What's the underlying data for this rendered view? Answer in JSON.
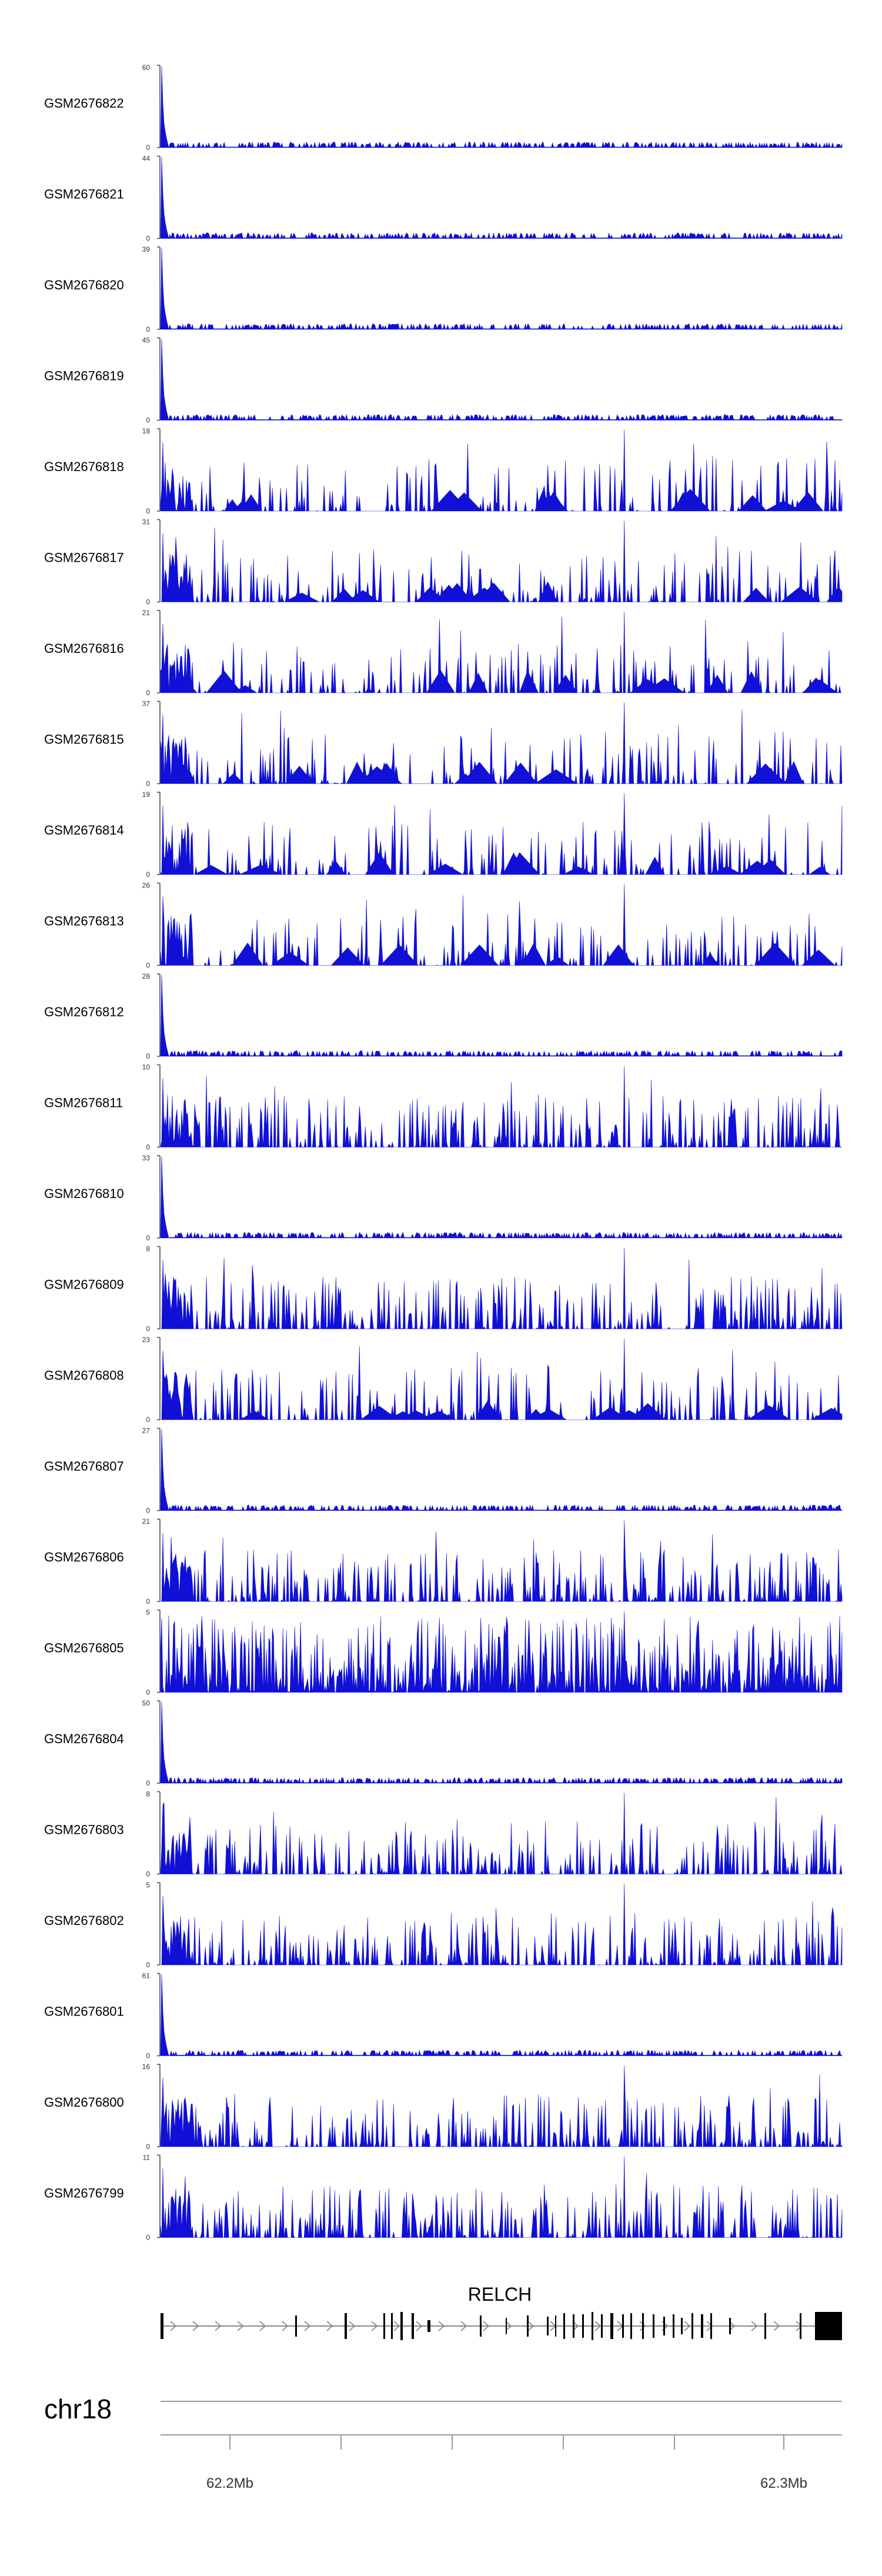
{
  "chart_data": {
    "type": "area",
    "chromosome": "chr18",
    "gene": {
      "name": "RELCH",
      "strand": "+"
    },
    "x_ticks": [
      "62.2Mb",
      "62.3Mb"
    ],
    "colors": {
      "track": "#1010d6",
      "axis": "#444444",
      "gene": "#000000",
      "ideogram": "#9a9a9a"
    },
    "tracks": [
      {
        "name": "GSM2676822",
        "ymax": "60",
        "ymin": "0",
        "pattern": "spike_first",
        "peak": 60
      },
      {
        "name": "GSM2676821",
        "ymax": "44",
        "ymin": "0",
        "pattern": "spike_first",
        "peak": 44
      },
      {
        "name": "GSM2676820",
        "ymax": "39",
        "ymin": "0",
        "pattern": "spike_first",
        "peak": 39
      },
      {
        "name": "GSM2676819",
        "ymax": "45",
        "ymin": "0",
        "pattern": "spike_first",
        "peak": 45
      },
      {
        "name": "GSM2676818",
        "ymax": "18",
        "ymin": "0",
        "pattern": "sparse_peaks",
        "peak": 18
      },
      {
        "name": "GSM2676817",
        "ymax": "31",
        "ymin": "0",
        "pattern": "sparse_peaks",
        "peak": 31
      },
      {
        "name": "GSM2676816",
        "ymax": "21",
        "ymin": "0",
        "pattern": "sparse_peaks",
        "peak": 21
      },
      {
        "name": "GSM2676815",
        "ymax": "37",
        "ymin": "0",
        "pattern": "sparse_peaks",
        "peak": 37
      },
      {
        "name": "GSM2676814",
        "ymax": "19",
        "ymin": "0",
        "pattern": "sparse_peaks",
        "peak": 19
      },
      {
        "name": "GSM2676813",
        "ymax": "26",
        "ymin": "0",
        "pattern": "sparse_peaks",
        "peak": 26
      },
      {
        "name": "GSM2676812",
        "ymax": "28",
        "ymin": "0",
        "pattern": "spike_first",
        "peak": 28
      },
      {
        "name": "GSM2676811",
        "ymax": "10",
        "ymin": "0",
        "pattern": "dense_peaks",
        "peak": 10
      },
      {
        "name": "GSM2676810",
        "ymax": "33",
        "ymin": "0",
        "pattern": "spike_first",
        "peak": 33
      },
      {
        "name": "GSM2676809",
        "ymax": "8",
        "ymin": "0",
        "pattern": "dense_peaks",
        "peak": 8
      },
      {
        "name": "GSM2676808",
        "ymax": "23",
        "ymin": "0",
        "pattern": "sparse_peaks",
        "peak": 23
      },
      {
        "name": "GSM2676807",
        "ymax": "27",
        "ymin": "0",
        "pattern": "spike_first",
        "peak": 27
      },
      {
        "name": "GSM2676806",
        "ymax": "21",
        "ymin": "0",
        "pattern": "dense_peaks",
        "peak": 21
      },
      {
        "name": "GSM2676805",
        "ymax": "5",
        "ymin": "0",
        "pattern": "very_dense",
        "peak": 5
      },
      {
        "name": "GSM2676804",
        "ymax": "50",
        "ymin": "0",
        "pattern": "spike_first",
        "peak": 50
      },
      {
        "name": "GSM2676803",
        "ymax": "8",
        "ymin": "0",
        "pattern": "dense_peaks",
        "peak": 8
      },
      {
        "name": "GSM2676802",
        "ymax": "5",
        "ymin": "0",
        "pattern": "dense_peaks",
        "peak": 5
      },
      {
        "name": "GSM2676801",
        "ymax": "61",
        "ymin": "0",
        "pattern": "spike_first",
        "peak": 61
      },
      {
        "name": "GSM2676800",
        "ymax": "16",
        "ymin": "0",
        "pattern": "dense_peaks",
        "peak": 16
      },
      {
        "name": "GSM2676799",
        "ymax": "11",
        "ymin": "0",
        "pattern": "dense_peaks",
        "peak": 11
      }
    ]
  }
}
